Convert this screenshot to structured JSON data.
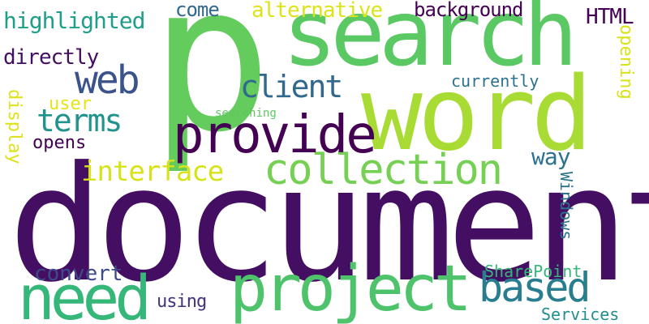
{
  "cloud": {
    "words": {
      "document": {
        "text": "document",
        "color": "#440f62"
      },
      "p": {
        "text": "p",
        "color": "#64cb5d"
      },
      "word": {
        "text": "word",
        "color": "#a8db34"
      },
      "search": {
        "text": "search",
        "color": "#5ac863"
      },
      "project": {
        "text": "project",
        "color": "#4ec36b"
      },
      "need": {
        "text": "need",
        "color": "#35b779"
      },
      "collection": {
        "text": "collection",
        "color": "#75d054"
      },
      "provide": {
        "text": "provide",
        "color": "#440154"
      },
      "web": {
        "text": "web",
        "color": "#3b528b"
      },
      "based": {
        "text": "based",
        "color": "#287d8e"
      },
      "interface": {
        "text": "interface",
        "color": "#d8e219"
      },
      "terms": {
        "text": "terms",
        "color": "#20938c"
      },
      "client": {
        "text": "client",
        "color": "#31688e"
      },
      "convert": {
        "text": "convert",
        "color": "#3e4a89"
      },
      "alternative": {
        "text": "alternative",
        "color": "#dde318"
      },
      "highlighted": {
        "text": "highlighted",
        "color": "#1f9e89"
      },
      "background": {
        "text": "background",
        "color": "#440154"
      },
      "directly": {
        "text": "directly",
        "color": "#440f62"
      },
      "HTML": {
        "text": "HTML",
        "color": "#440154"
      },
      "come": {
        "text": "come",
        "color": "#31688e"
      },
      "currently": {
        "text": "currently",
        "color": "#2c728e"
      },
      "user": {
        "text": "user",
        "color": "#e5e419"
      },
      "opens": {
        "text": "opens",
        "color": "#440154"
      },
      "way": {
        "text": "way",
        "color": "#2c728e"
      },
      "SharePoint": {
        "text": "SharePoint",
        "color": "#35b779"
      },
      "using": {
        "text": "using",
        "color": "#46337e"
      },
      "Services": {
        "text": "Services",
        "color": "#218f8d"
      },
      "searching": {
        "text": "searching",
        "color": "#60c862"
      },
      "display": {
        "text": "display",
        "color": "#dde318"
      },
      "opening": {
        "text": "opening",
        "color": "#d8e219"
      },
      "Windows": {
        "text": "Windows",
        "color": "#2c728e"
      }
    }
  }
}
